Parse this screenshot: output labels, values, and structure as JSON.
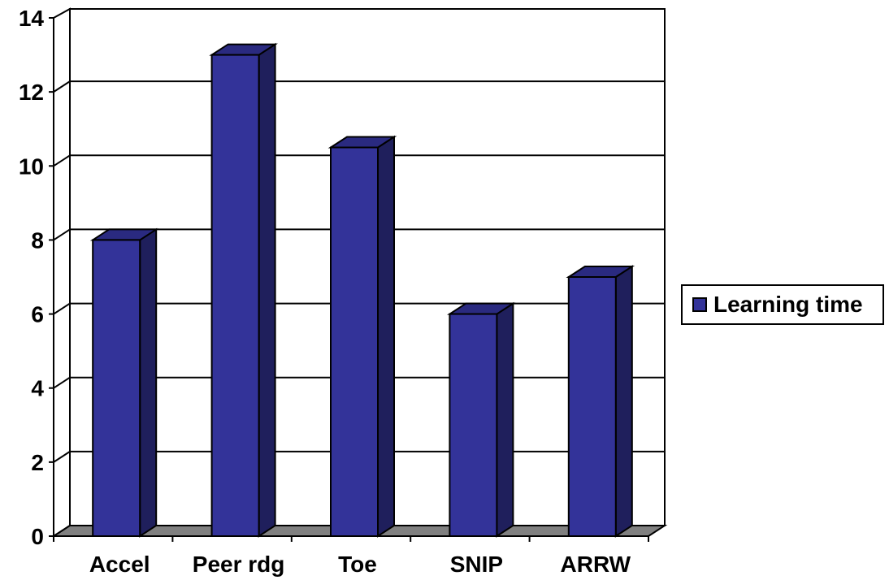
{
  "chart_data": {
    "type": "bar",
    "categories": [
      "Accel",
      "Peer rdg",
      "Toe",
      "SNIP",
      "ARRW"
    ],
    "series": [
      {
        "name": "Learning time",
        "values": [
          8,
          13,
          10.5,
          6,
          7
        ],
        "color": "#333399"
      }
    ],
    "ylim": [
      0,
      14
    ],
    "yticks": [
      0,
      2,
      4,
      6,
      8,
      10,
      12,
      14
    ],
    "grid": true,
    "legend_position": "right",
    "style": "3d-column"
  }
}
